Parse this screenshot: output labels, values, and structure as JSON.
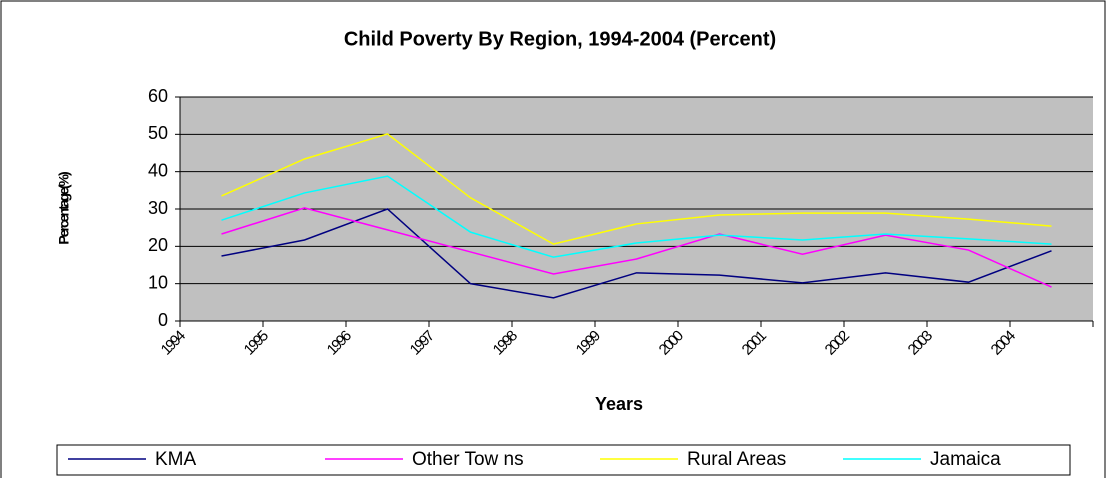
{
  "chart_data": {
    "type": "line",
    "title": "Child Poverty By Region, 1994-2004 (Percent)",
    "x_label": "Years",
    "y_label": "Percentage(%)",
    "categories": [
      "1994",
      "1995",
      "1996",
      "1997",
      "1998",
      "1999",
      "2000",
      "2001",
      "2002",
      "2003",
      "2004"
    ],
    "series": [
      {
        "name": "KMA",
        "color": "#000080",
        "values": [
          17.4,
          21.7,
          30,
          10,
          6.2,
          12.9,
          12.3,
          10.2,
          12.9,
          10.4,
          18.8
        ]
      },
      {
        "name": "Other Tow ns",
        "color": "#ff00ff",
        "values": [
          23.3,
          30.3,
          24.4,
          18.5,
          12.6,
          16.6,
          23.3,
          17.9,
          23,
          19,
          9.1
        ]
      },
      {
        "name": "Rural Areas",
        "color": "#ffff00",
        "values": [
          33.5,
          43.4,
          50.1,
          33,
          20.6,
          26,
          28.4,
          28.9,
          28.9,
          27.3,
          25.4
        ]
      },
      {
        "name": "Jamaica",
        "color": "#00ffff",
        "values": [
          27,
          34.3,
          38.8,
          23.8,
          17.1,
          20.9,
          23,
          21.7,
          23.3,
          22,
          20.6
        ]
      }
    ],
    "ylim": [
      0,
      60
    ],
    "yticks": [
      0,
      10,
      20,
      30,
      40,
      50,
      60
    ],
    "grid": true,
    "legend": "bottom"
  }
}
